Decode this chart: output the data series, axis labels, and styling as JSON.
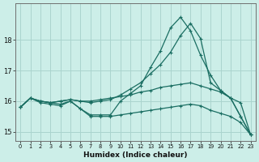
{
  "xlabel": "Humidex (Indice chaleur)",
  "background_color": "#cceee8",
  "grid_color": "#aad4ce",
  "line_color": "#1a6e62",
  "hours": [
    0,
    1,
    2,
    3,
    4,
    5,
    6,
    7,
    8,
    9,
    10,
    11,
    12,
    13,
    14,
    15,
    16,
    17,
    18,
    19,
    20,
    21,
    22,
    23
  ],
  "series": [
    [
      15.8,
      16.1,
      16.0,
      15.95,
      16.0,
      16.05,
      16.0,
      16.0,
      16.05,
      16.1,
      16.15,
      16.2,
      16.3,
      16.35,
      16.45,
      16.5,
      16.55,
      16.6,
      16.5,
      16.4,
      16.3,
      16.1,
      15.95,
      14.9
    ],
    [
      15.8,
      16.1,
      16.0,
      15.95,
      16.0,
      16.05,
      16.0,
      15.95,
      16.0,
      16.05,
      16.2,
      16.4,
      16.6,
      16.9,
      17.2,
      17.6,
      18.15,
      18.55,
      18.05,
      16.6,
      16.35,
      16.1,
      15.5,
      14.9
    ],
    [
      15.8,
      16.1,
      16.0,
      15.95,
      15.9,
      16.0,
      15.75,
      15.55,
      15.55,
      15.55,
      16.0,
      16.25,
      16.5,
      17.1,
      17.65,
      18.4,
      18.75,
      18.3,
      17.5,
      16.85,
      16.35,
      16.1,
      15.5,
      14.9
    ],
    [
      15.8,
      16.1,
      15.95,
      15.9,
      15.85,
      16.0,
      15.75,
      15.5,
      15.5,
      15.5,
      15.55,
      15.6,
      15.65,
      15.7,
      15.75,
      15.8,
      15.85,
      15.9,
      15.85,
      15.7,
      15.6,
      15.5,
      15.3,
      14.9
    ]
  ],
  "ylim": [
    14.7,
    19.2
  ],
  "yticks": [
    15,
    16,
    17,
    18
  ],
  "xlim": [
    -0.5,
    23.5
  ]
}
